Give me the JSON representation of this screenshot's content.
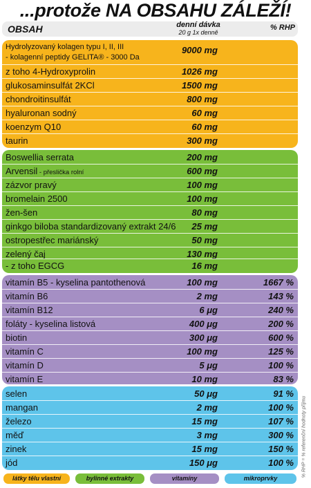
{
  "title": "...protože NA OBSAHU ZÁLEŽÍ!",
  "header": {
    "col1": "OBSAH",
    "col2": "denní dávka",
    "col2_sub": "20 g 1x denně",
    "col3": "% RHP"
  },
  "colors": {
    "orange": "#f7b41c",
    "green": "#79be3a",
    "purple": "#a58fc4",
    "blue": "#5ec4ea",
    "header": "#ececec"
  },
  "groups": {
    "orange": [
      {
        "name": "Hydrolyzovaný kolagen typu I, II, III",
        "name2": "- kolagenní peptidy GELITA® - 3000 Da",
        "value": "9000 mg",
        "rhp": ""
      },
      {
        "name": "z toho 4-Hydroxyprolin",
        "value": "1026 mg",
        "rhp": ""
      },
      {
        "name": "glukosaminsulfát 2KCl",
        "value": "1500 mg",
        "rhp": ""
      },
      {
        "name": "chondroitinsulfát",
        "value": "800 mg",
        "rhp": ""
      },
      {
        "name": "hyaluronan sodný",
        "value": "60 mg",
        "rhp": ""
      },
      {
        "name": "koenzym Q10",
        "value": "60 mg",
        "rhp": ""
      },
      {
        "name": "taurin",
        "value": "300 mg",
        "rhp": ""
      }
    ],
    "green": [
      {
        "name": "Boswellia serrata",
        "value": "200 mg",
        "rhp": ""
      },
      {
        "name": "Arvensil",
        "sub": " - přeslička rolní",
        "value": "600 mg",
        "rhp": ""
      },
      {
        "name": "zázvor pravý",
        "value": "100 mg",
        "rhp": ""
      },
      {
        "name": "bromelain 2500",
        "value": "100 mg",
        "rhp": ""
      },
      {
        "name": "žen-šen",
        "value": "80 mg",
        "rhp": ""
      },
      {
        "name": "ginkgo biloba standardizovaný extrakt 24/6",
        "value": "25 mg",
        "rhp": ""
      },
      {
        "name": "ostropestřec mariánský",
        "value": "50 mg",
        "rhp": ""
      },
      {
        "name": "zelený čaj",
        "value": "130 mg",
        "rhp": ""
      },
      {
        "name": "- z toho EGCG",
        "value": "16 mg",
        "rhp": ""
      }
    ],
    "purple": [
      {
        "name": "vitamín B5 - kyselina pantothenová",
        "value": "100 mg",
        "rhp": "1667 %"
      },
      {
        "name": "vitamín B6",
        "value": "2 mg",
        "rhp": "143 %"
      },
      {
        "name": "vitamín B12",
        "value": "6 μg",
        "rhp": "240 %"
      },
      {
        "name": "foláty - kyselina listová",
        "value": "400 μg",
        "rhp": "200 %"
      },
      {
        "name": "biotin",
        "value": "300 μg",
        "rhp": "600 %"
      },
      {
        "name": "vitamín C",
        "value": "100 mg",
        "rhp": "125 %"
      },
      {
        "name": "vitamín D",
        "value": "5 μg",
        "rhp": "100 %"
      },
      {
        "name": "vitamín E",
        "value": "10 mg",
        "rhp": "83 %"
      }
    ],
    "blue": [
      {
        "name": "selen",
        "value": "50 μg",
        "rhp": "91 %"
      },
      {
        "name": "mangan",
        "value": "2 mg",
        "rhp": "100 %"
      },
      {
        "name": "železo",
        "value": "15 mg",
        "rhp": "107 %"
      },
      {
        "name": "měď",
        "value": "3 mg",
        "rhp": "300 %"
      },
      {
        "name": "zinek",
        "value": "15 mg",
        "rhp": "150 %"
      },
      {
        "name": "jód",
        "value": "150 μg",
        "rhp": "100 %"
      }
    ]
  },
  "legend": [
    {
      "label": "látky tělu vlastní",
      "color": "#f7b41c"
    },
    {
      "label": "bylinné extrakty",
      "color": "#79be3a"
    },
    {
      "label": "vitamíny",
      "color": "#a58fc4"
    },
    {
      "label": "mikroprvky",
      "color": "#5ec4ea"
    }
  ],
  "side_note": "% RHP = % referenční hodnoty příjmu"
}
